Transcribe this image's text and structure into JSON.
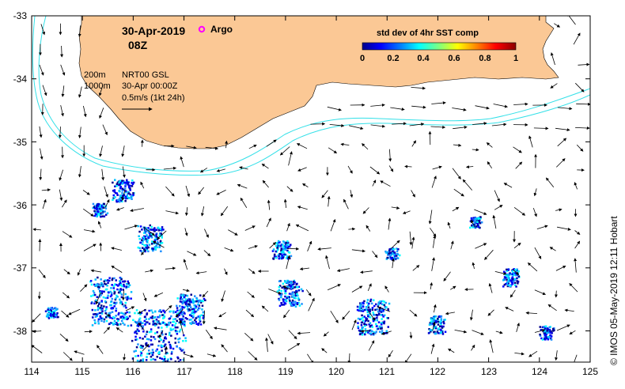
{
  "map": {
    "date": "30-Apr-2019",
    "hour": "08Z",
    "legend_argo": "Argo",
    "argo_color": "#ff00ff",
    "isobath_200": "200m",
    "isobath_1000": "1000m",
    "product": "NRT00 GSL",
    "product_time": "30-Apr 00:00Z",
    "scale_label": "0.5m/s (1kt 24h)",
    "land_color": "#fbc895",
    "isobath_color": "#33e0e8",
    "credit": "© IMOS 05-May-2019 12:11 Hobart"
  },
  "colorbar": {
    "title": "std dev of 4hr SST comp",
    "ticks": [
      "0",
      "0.2",
      "0.4",
      "0.6",
      "0.8",
      "1"
    ],
    "colors": [
      "#00008b",
      "#0000ff",
      "#007fff",
      "#00ffff",
      "#7fff7f",
      "#ffff00",
      "#ff7f00",
      "#ff0000",
      "#8b0000"
    ]
  },
  "axes": {
    "x_ticks": [
      "114",
      "115",
      "116",
      "117",
      "118",
      "119",
      "120",
      "121",
      "122",
      "123",
      "124",
      "125"
    ],
    "y_ticks": [
      "-33",
      "-34",
      "-35",
      "-36",
      "-37",
      "-38"
    ],
    "lon_range": [
      114,
      125
    ],
    "lat_range": [
      -38.5,
      -33
    ]
  }
}
